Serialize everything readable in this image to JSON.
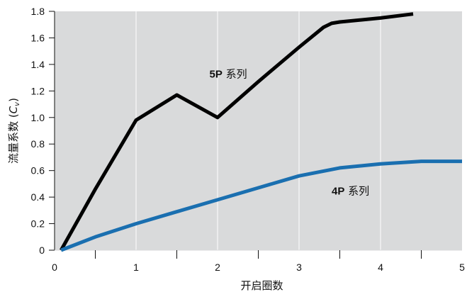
{
  "chart_data": {
    "type": "line",
    "xlabel": "开启圈数",
    "ylabel_prefix": "流量系数 (",
    "ylabel_var": "C",
    "ylabel_sub": "v",
    "ylabel_suffix": ")",
    "xlim": [
      0,
      5
    ],
    "ylim": [
      0,
      1.8
    ],
    "x_ticks": [
      "0",
      "1",
      "2",
      "3",
      "4",
      "5"
    ],
    "x_minor_ticks": [
      0.5,
      1.5,
      2.5,
      3.5,
      4.5
    ],
    "y_ticks": [
      "0",
      "0.2",
      "0.4",
      "0.6",
      "0.8",
      "1.0",
      "1.2",
      "1.4",
      "1.6",
      "1.8"
    ],
    "grid": true,
    "background": "#d9dadb",
    "series": [
      {
        "label_bold": "5P",
        "label_rest": " 系列",
        "label_pos": [
          1.9,
          1.3
        ],
        "color": "#000000",
        "x": [
          0.08,
          0.5,
          1.0,
          1.5,
          2.0,
          2.5,
          3.0,
          3.3,
          3.4,
          3.5,
          4.0,
          4.4
        ],
        "y": [
          0.0,
          0.46,
          0.98,
          1.17,
          1.0,
          1.27,
          1.53,
          1.68,
          1.71,
          1.72,
          1.75,
          1.78
        ]
      },
      {
        "label_bold": "4P",
        "label_rest": " 系列",
        "label_pos": [
          3.4,
          0.42
        ],
        "color": "#1a6fb0",
        "x": [
          0.08,
          0.5,
          1.0,
          1.5,
          2.0,
          2.5,
          3.0,
          3.5,
          4.0,
          4.5,
          5.0
        ],
        "y": [
          0.0,
          0.1,
          0.2,
          0.29,
          0.38,
          0.47,
          0.56,
          0.62,
          0.65,
          0.67,
          0.67
        ]
      }
    ]
  }
}
